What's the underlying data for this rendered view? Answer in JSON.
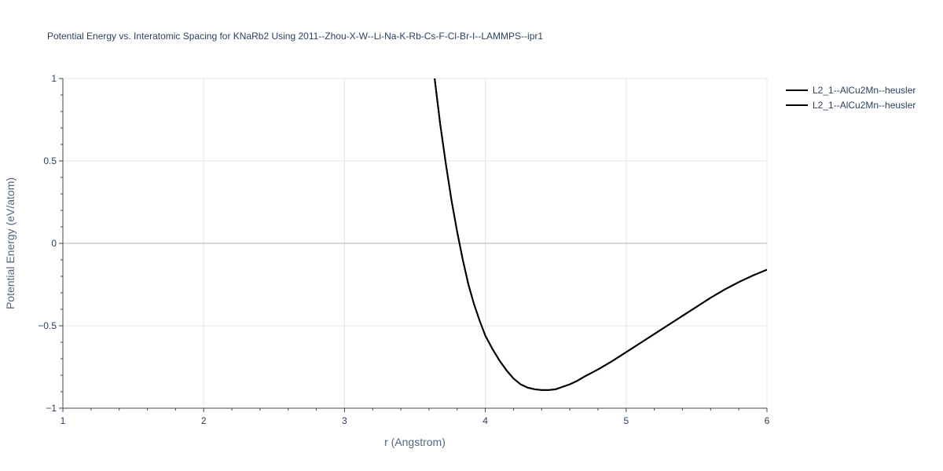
{
  "chart_data": {
    "type": "line",
    "title": "Potential Energy vs. Interatomic Spacing for KNaRb2 Using 2011--Zhou-X-W--Li-Na-K-Rb-Cs-F-Cl-Br-I--LAMMPS--ipr1",
    "xlabel": "r (Angstrom)",
    "ylabel": "Potential Energy (eV/atom)",
    "xlim": [
      1,
      6
    ],
    "ylim": [
      -1,
      1
    ],
    "x_ticks": [
      1,
      2,
      3,
      4,
      5,
      6
    ],
    "y_ticks": [
      -1,
      -0.5,
      0,
      0.5,
      1
    ],
    "x_tick_labels": [
      "1",
      "2",
      "3",
      "4",
      "5",
      "6"
    ],
    "y_tick_labels": [
      "−1",
      "−0.5",
      "0",
      "0.5",
      "1"
    ],
    "grid": true,
    "legend_position": "top-right",
    "series": [
      {
        "name": "L2_1--AlCu2Mn--heusler",
        "color": "#000000",
        "x": [
          3.64,
          3.68,
          3.72,
          3.76,
          3.8,
          3.84,
          3.88,
          3.92,
          3.96,
          4.0,
          4.05,
          4.1,
          4.15,
          4.2,
          4.25,
          4.3,
          4.35,
          4.4,
          4.45,
          4.5,
          4.55,
          4.6,
          4.65,
          4.7,
          4.8,
          4.9,
          5.0,
          5.1,
          5.2,
          5.3,
          5.4,
          5.5,
          5.6,
          5.7,
          5.8,
          5.9,
          6.0
        ],
        "y": [
          1.0,
          0.72,
          0.48,
          0.26,
          0.07,
          -0.1,
          -0.25,
          -0.37,
          -0.47,
          -0.56,
          -0.64,
          -0.71,
          -0.77,
          -0.82,
          -0.855,
          -0.875,
          -0.885,
          -0.89,
          -0.89,
          -0.885,
          -0.87,
          -0.855,
          -0.835,
          -0.81,
          -0.765,
          -0.715,
          -0.66,
          -0.605,
          -0.55,
          -0.495,
          -0.44,
          -0.385,
          -0.33,
          -0.28,
          -0.235,
          -0.195,
          -0.16
        ]
      },
      {
        "name": "L2_1--AlCu2Mn--heusler",
        "color": "#000000",
        "x": [
          3.64,
          3.68,
          3.72,
          3.76,
          3.8,
          3.84,
          3.88,
          3.92,
          3.96,
          4.0,
          4.05,
          4.1,
          4.15,
          4.2,
          4.25,
          4.3,
          4.35,
          4.4,
          4.45,
          4.5,
          4.55,
          4.6,
          4.65,
          4.7,
          4.8,
          4.9,
          5.0,
          5.1,
          5.2,
          5.3,
          5.4,
          5.5,
          5.6,
          5.7,
          5.8,
          5.9,
          6.0
        ],
        "y": [
          1.0,
          0.72,
          0.48,
          0.26,
          0.07,
          -0.1,
          -0.25,
          -0.37,
          -0.47,
          -0.56,
          -0.64,
          -0.71,
          -0.77,
          -0.82,
          -0.855,
          -0.875,
          -0.885,
          -0.89,
          -0.89,
          -0.885,
          -0.87,
          -0.855,
          -0.835,
          -0.81,
          -0.765,
          -0.715,
          -0.66,
          -0.605,
          -0.55,
          -0.495,
          -0.44,
          -0.385,
          -0.33,
          -0.28,
          -0.235,
          -0.195,
          -0.16
        ]
      }
    ]
  }
}
